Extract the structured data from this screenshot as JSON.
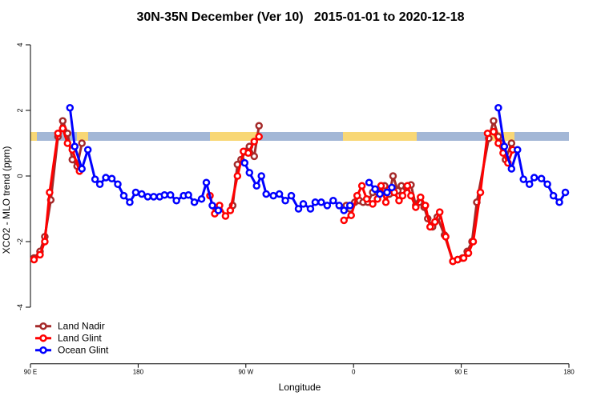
{
  "chart_data": {
    "type": "line",
    "title": "30N-35N December (Ver 10)   2015-01-01 to 2020-12-18",
    "x_label": "Longitude",
    "y_label": "XCO2 - MLO trend (ppm)",
    "xlim": [
      90,
      540
    ],
    "xticks": [
      {
        "value": 90,
        "label": "90 E"
      },
      {
        "value": 180,
        "label": "180"
      },
      {
        "value": 270,
        "label": "90 W"
      },
      {
        "value": 360,
        "label": "0"
      },
      {
        "value": 450,
        "label": "90 E"
      },
      {
        "value": 540,
        "label": "180"
      }
    ],
    "ylim": [
      -5.7,
      4.4
    ],
    "yticks": [
      -4,
      -2,
      0,
      2,
      4
    ],
    "grid": false,
    "legend": "bottom-left",
    "series": [
      {
        "name": "Land Nadir",
        "color": "#a52a2a",
        "x": [
          93,
          98,
          102,
          107,
          113,
          117,
          121,
          125,
          129,
          133,
          null,
          259,
          263,
          266,
          270,
          273,
          277,
          281,
          null,
          354,
          357,
          361,
          365,
          368,
          372,
          376,
          380,
          383,
          386,
          390,
          393,
          397,
          400,
          404,
          408,
          412,
          415,
          419,
          422,
          426,
          430,
          436,
          443,
          447,
          451,
          455,
          459,
          463,
          473,
          477,
          481,
          484,
          487,
          492
        ],
        "values": [
          -2.5,
          -2.3,
          -1.85,
          -0.73,
          1.2,
          1.68,
          1.3,
          0.5,
          0.3,
          1.0,
          null,
          -0.9,
          0.35,
          0.5,
          0.75,
          0.9,
          0.6,
          1.53,
          null,
          -0.9,
          -1.0,
          -0.8,
          -0.75,
          -0.8,
          -0.8,
          -0.5,
          -0.5,
          -0.3,
          -0.3,
          -0.55,
          0.0,
          -0.45,
          -0.3,
          -0.35,
          -0.27,
          -0.9,
          -0.8,
          -0.95,
          -1.3,
          -1.55,
          -1.25,
          -1.8,
          -2.6,
          -2.55,
          -2.5,
          -2.3,
          -2.0,
          -0.8,
          1.15,
          1.68,
          1.2,
          1.0,
          0.5,
          1.0
        ]
      },
      {
        "name": "Land Glint",
        "color": "#ff0000",
        "x": [
          93,
          98,
          102,
          106,
          113,
          117,
          121,
          125,
          131,
          null,
          240,
          244,
          248,
          253,
          257,
          263,
          268,
          272,
          277,
          281,
          null,
          352,
          358,
          363,
          367,
          371,
          376,
          380,
          383,
          387,
          390,
          394,
          398,
          401,
          405,
          408,
          412,
          416,
          420,
          424,
          428,
          432,
          437,
          443,
          447,
          452,
          456,
          460,
          466,
          472,
          477,
          481,
          485,
          489,
          493
        ],
        "values": [
          -2.55,
          -2.4,
          -2.0,
          -0.5,
          1.3,
          1.45,
          1.0,
          0.8,
          0.15,
          null,
          -0.6,
          -1.15,
          -0.9,
          -1.22,
          -1.05,
          0.0,
          0.75,
          0.7,
          1.05,
          1.2,
          null,
          -1.35,
          -1.2,
          -0.6,
          -0.3,
          -0.7,
          -0.85,
          -0.7,
          -0.3,
          -0.8,
          -0.4,
          -0.5,
          -0.75,
          -0.6,
          -0.3,
          -0.6,
          -0.95,
          -0.65,
          -0.9,
          -1.55,
          -1.4,
          -1.1,
          -1.85,
          -2.6,
          -2.55,
          -2.5,
          -2.35,
          -2.0,
          -0.5,
          1.3,
          1.35,
          1.0,
          0.7,
          0.4,
          0.8
        ]
      },
      {
        "name": "Ocean Glint",
        "color": "#0000ff",
        "x": [
          123,
          127,
          133,
          138,
          144,
          148,
          153,
          158,
          163,
          168,
          173,
          178,
          183,
          188,
          193,
          198,
          202,
          207,
          212,
          218,
          222,
          227,
          233,
          237,
          242,
          247,
          null,
          269,
          273,
          279,
          283,
          287,
          293,
          298,
          303,
          308,
          314,
          318,
          324,
          328,
          333,
          338,
          343,
          348,
          352,
          357,
          null,
          373,
          378,
          382,
          388,
          392,
          null,
          481,
          486,
          492,
          497,
          502,
          507,
          511,
          517,
          522,
          527,
          532,
          537
        ],
        "values": [
          2.08,
          0.9,
          0.22,
          0.8,
          -0.1,
          -0.25,
          -0.05,
          -0.08,
          -0.25,
          -0.6,
          -0.8,
          -0.5,
          -0.55,
          -0.63,
          -0.63,
          -0.63,
          -0.58,
          -0.58,
          -0.75,
          -0.6,
          -0.58,
          -0.8,
          -0.7,
          -0.2,
          -0.9,
          -1.05,
          null,
          0.4,
          0.1,
          -0.3,
          0.0,
          -0.55,
          -0.6,
          -0.55,
          -0.75,
          -0.6,
          -1.0,
          -0.85,
          -1.0,
          -0.8,
          -0.8,
          -0.9,
          -0.75,
          -0.9,
          -1.05,
          -0.9,
          null,
          -0.2,
          -0.4,
          -0.55,
          -0.5,
          -0.35,
          null,
          2.08,
          0.9,
          0.22,
          0.8,
          -0.1,
          -0.25,
          -0.05,
          -0.08,
          -0.25,
          -0.6,
          -0.8,
          -0.5
        ]
      }
    ]
  }
}
